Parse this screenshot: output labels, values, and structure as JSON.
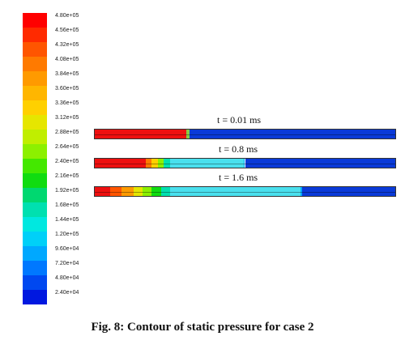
{
  "legend": {
    "labels": [
      "4.80e+05",
      "4.56e+05",
      "4.32e+05",
      "4.08e+05",
      "3.84e+05",
      "3.60e+05",
      "3.36e+05",
      "3.12e+05",
      "2.88e+05",
      "2.64e+05",
      "2.40e+05",
      "2.16e+05",
      "1.92e+05",
      "1.68e+05",
      "1.44e+05",
      "1.20e+05",
      "9.60e+04",
      "7.20e+04",
      "4.80e+04",
      "2.40e+04"
    ],
    "colors": [
      "#ff0000",
      "#ff2a00",
      "#ff5500",
      "#ff7a00",
      "#ff9a00",
      "#ffb600",
      "#ffd000",
      "#e6e600",
      "#c0ee00",
      "#8cf000",
      "#44e800",
      "#10dc10",
      "#00d870",
      "#00e0b0",
      "#00e8e0",
      "#00d0f8",
      "#00a8ff",
      "#0078ff",
      "#0048f0",
      "#0018e0"
    ]
  },
  "strips": [
    {
      "label": "t = 0.01 ms",
      "segments": [
        {
          "from": 0.0,
          "to": 0.305,
          "color": "#ee1010"
        },
        {
          "from": 0.305,
          "to": 0.315,
          "color": "#88cc44"
        },
        {
          "from": 0.315,
          "to": 1.0,
          "color": "#0a3ad8"
        }
      ]
    },
    {
      "label": "t = 0.8 ms",
      "segments": [
        {
          "from": 0.0,
          "to": 0.17,
          "color": "#ee1010"
        },
        {
          "from": 0.17,
          "to": 0.19,
          "color": "#ff7a00"
        },
        {
          "from": 0.19,
          "to": 0.21,
          "color": "#ffd000"
        },
        {
          "from": 0.21,
          "to": 0.23,
          "color": "#8cf000"
        },
        {
          "from": 0.23,
          "to": 0.25,
          "color": "#00e0b0"
        },
        {
          "from": 0.25,
          "to": 0.495,
          "color": "#4ae0ee"
        },
        {
          "from": 0.495,
          "to": 0.5,
          "color": "#00a8ff"
        },
        {
          "from": 0.5,
          "to": 1.0,
          "color": "#0a3ad8"
        }
      ]
    },
    {
      "label": "t = 1.6 ms",
      "segments": [
        {
          "from": 0.0,
          "to": 0.05,
          "color": "#ee1010"
        },
        {
          "from": 0.05,
          "to": 0.09,
          "color": "#ff5500"
        },
        {
          "from": 0.09,
          "to": 0.13,
          "color": "#ff9a00"
        },
        {
          "from": 0.13,
          "to": 0.16,
          "color": "#e6e600"
        },
        {
          "from": 0.16,
          "to": 0.19,
          "color": "#8cf000"
        },
        {
          "from": 0.19,
          "to": 0.22,
          "color": "#10dc10"
        },
        {
          "from": 0.22,
          "to": 0.25,
          "color": "#00e0b0"
        },
        {
          "from": 0.25,
          "to": 0.685,
          "color": "#4ae0ee"
        },
        {
          "from": 0.685,
          "to": 0.69,
          "color": "#00a8ff"
        },
        {
          "from": 0.69,
          "to": 1.0,
          "color": "#0a3ad8"
        }
      ]
    }
  ],
  "caption": "Fig. 8: Contour of static pressure for case 2"
}
